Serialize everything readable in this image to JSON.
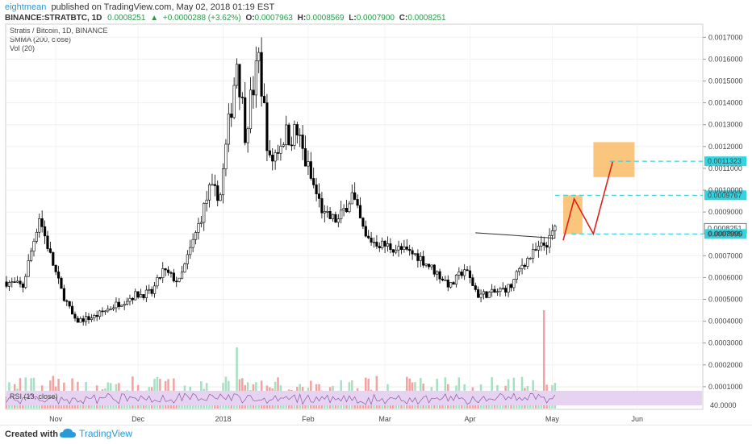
{
  "header": {
    "author": "eightmean",
    "published": "published on TradingView.com, May 02, 2018 01:19 EST",
    "symbol": "BINANCE:STRATBTC, 1D",
    "last": "0.0008251",
    "change_arrow": "▲",
    "change": "+0.0000288 (+3.62%)",
    "o_label": "O:",
    "o": "0.0007963",
    "h_label": "H:",
    "h": "0.0008569",
    "l_label": "L:",
    "l": "0.0007900",
    "c_label": "C:",
    "c": "0.0008251"
  },
  "legend": {
    "line1": "Stratis / Bitcoin, 1D, BINANCE",
    "line2": "SMMA (200, close)",
    "line3": "Vol (20)"
  },
  "rsi": {
    "label": "RSI (13, close)",
    "level_label": "40.0000"
  },
  "footer": {
    "created": "Created with",
    "brand": "TradingView"
  },
  "colors": {
    "up": "#ffffff",
    "down": "#000000",
    "vol_up": "#a8dfc3",
    "vol_down": "#f1a3a3",
    "zone": "#f8b250",
    "dashed": "#33d4e0",
    "path": "#e0201c",
    "rsi_band": "#e6d3f2"
  },
  "chart_data": {
    "type": "candlestick",
    "x_ticks": [
      "Nov",
      "Dec",
      "2018",
      "Feb",
      "Mar",
      "Apr",
      "May",
      "Jun"
    ],
    "y_ticks": [
      "0.0017000",
      "0.0016000",
      "0.0015000",
      "0.0014000",
      "0.0013000",
      "0.0012000",
      "0.0011000",
      "0.0010000",
      "0.0009000",
      "0.0008000",
      "0.0007000",
      "0.0006000",
      "0.0005000",
      "0.0004000",
      "0.0003000",
      "0.0002000",
      "0.0001000"
    ],
    "ylim": [
      0,
      0.00175
    ],
    "price_path": [
      [
        "2017-10-14",
        0.00058
      ],
      [
        "2017-10-20",
        0.00056
      ],
      [
        "2017-10-26",
        0.00088
      ],
      [
        "2017-10-30",
        0.0007
      ],
      [
        "2017-11-03",
        0.00054
      ],
      [
        "2017-11-08",
        0.0004
      ],
      [
        "2017-11-15",
        0.00042
      ],
      [
        "2017-11-22",
        0.00047
      ],
      [
        "2017-11-30",
        0.00052
      ],
      [
        "2017-12-06",
        0.00053
      ],
      [
        "2017-12-10",
        0.00063
      ],
      [
        "2017-12-16",
        0.00058
      ],
      [
        "2017-12-22",
        0.0008
      ],
      [
        "2017-12-27",
        0.001
      ],
      [
        "2017-12-31",
        0.00098
      ],
      [
        "2018-01-06",
        0.0016
      ],
      [
        "2018-01-09",
        0.00128
      ],
      [
        "2018-01-14",
        0.0016
      ],
      [
        "2018-01-18",
        0.00112
      ],
      [
        "2018-01-23",
        0.00125
      ],
      [
        "2018-01-28",
        0.00126
      ],
      [
        "2018-02-02",
        0.00105
      ],
      [
        "2018-02-07",
        0.00088
      ],
      [
        "2018-02-12",
        0.00086
      ],
      [
        "2018-02-17",
        0.00098
      ],
      [
        "2018-02-22",
        0.00078
      ],
      [
        "2018-02-28",
        0.00075
      ],
      [
        "2018-03-06",
        0.00073
      ],
      [
        "2018-03-13",
        0.0007
      ],
      [
        "2018-03-20",
        0.00062
      ],
      [
        "2018-03-25",
        0.00056
      ],
      [
        "2018-03-30",
        0.00064
      ],
      [
        "2018-04-04",
        0.00052
      ],
      [
        "2018-04-10",
        0.00053
      ],
      [
        "2018-04-16",
        0.00056
      ],
      [
        "2018-04-20",
        0.00066
      ],
      [
        "2018-04-25",
        0.00072
      ],
      [
        "2018-04-30",
        0.00077
      ],
      [
        "2018-05-02",
        0.00083
      ]
    ],
    "volume_max": 0.00045,
    "smma_level": "0.0007800",
    "levels": [
      "0.0011323",
      "0.0009767",
      "0.0008251",
      "0.0007995"
    ],
    "level_values": [
      0.0011323,
      0.0009767,
      0.0008251,
      0.0007995
    ],
    "zones": [
      {
        "from": "2018-05-05",
        "to": "2018-05-12",
        "low": 0.0007995,
        "high": 0.0009767
      },
      {
        "from": "2018-05-16",
        "to": "2018-05-31",
        "low": 0.00106,
        "high": 0.00122
      }
    ],
    "projection": [
      [
        "2018-05-05",
        0.00077
      ],
      [
        "2018-05-09",
        0.00096
      ],
      [
        "2018-05-16",
        0.0008
      ],
      [
        "2018-05-23",
        0.00113
      ]
    ],
    "rsi_level": 40
  }
}
